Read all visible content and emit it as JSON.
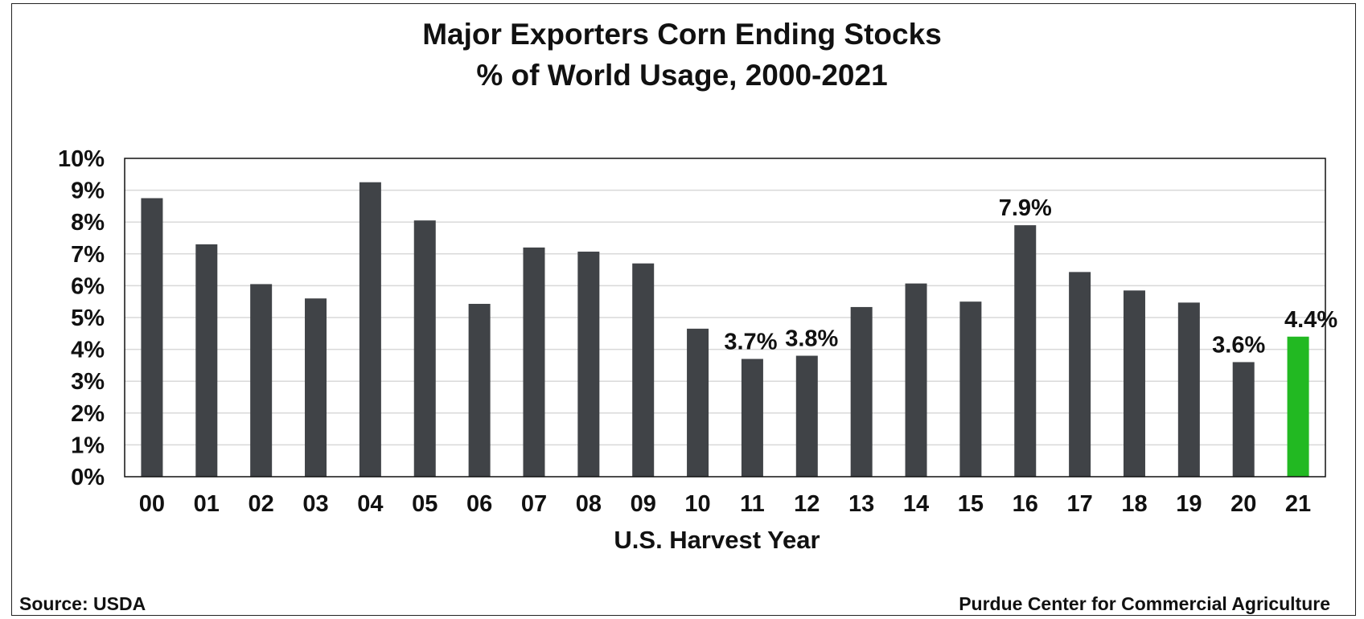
{
  "chart_data": {
    "type": "bar",
    "title": "Major Exporters Corn Ending Stocks",
    "subtitle": "% of World Usage, 2000-2021",
    "xlabel": "U.S. Harvest Year",
    "ylabel": "",
    "ylim": [
      0,
      10
    ],
    "yticks": [
      "0%",
      "1%",
      "2%",
      "3%",
      "4%",
      "5%",
      "6%",
      "7%",
      "8%",
      "9%",
      "10%"
    ],
    "grid": true,
    "categories": [
      "00",
      "01",
      "02",
      "03",
      "04",
      "05",
      "06",
      "07",
      "08",
      "09",
      "10",
      "11",
      "12",
      "13",
      "14",
      "15",
      "16",
      "17",
      "18",
      "19",
      "20",
      "21"
    ],
    "values": [
      8.75,
      7.3,
      6.05,
      5.6,
      9.25,
      8.05,
      5.43,
      7.2,
      7.07,
      6.7,
      4.65,
      3.7,
      3.8,
      5.33,
      6.07,
      5.5,
      7.9,
      6.43,
      5.85,
      5.47,
      3.6,
      4.4
    ],
    "data_labels": [
      {
        "category": "11",
        "text": "3.7%"
      },
      {
        "category": "12",
        "text": "3.8%"
      },
      {
        "category": "16",
        "text": "7.9%"
      },
      {
        "category": "20",
        "text": "3.6%"
      },
      {
        "category": "21",
        "text": "4.4%"
      }
    ],
    "colors": {
      "bar": "#404347",
      "highlight": "#22b922",
      "highlight_category": "21",
      "grid": "#d9d9d9",
      "axis": "#111111"
    }
  },
  "footer": {
    "source": "Source:  USDA",
    "credit": "Purdue Center for Commercial Agriculture"
  }
}
